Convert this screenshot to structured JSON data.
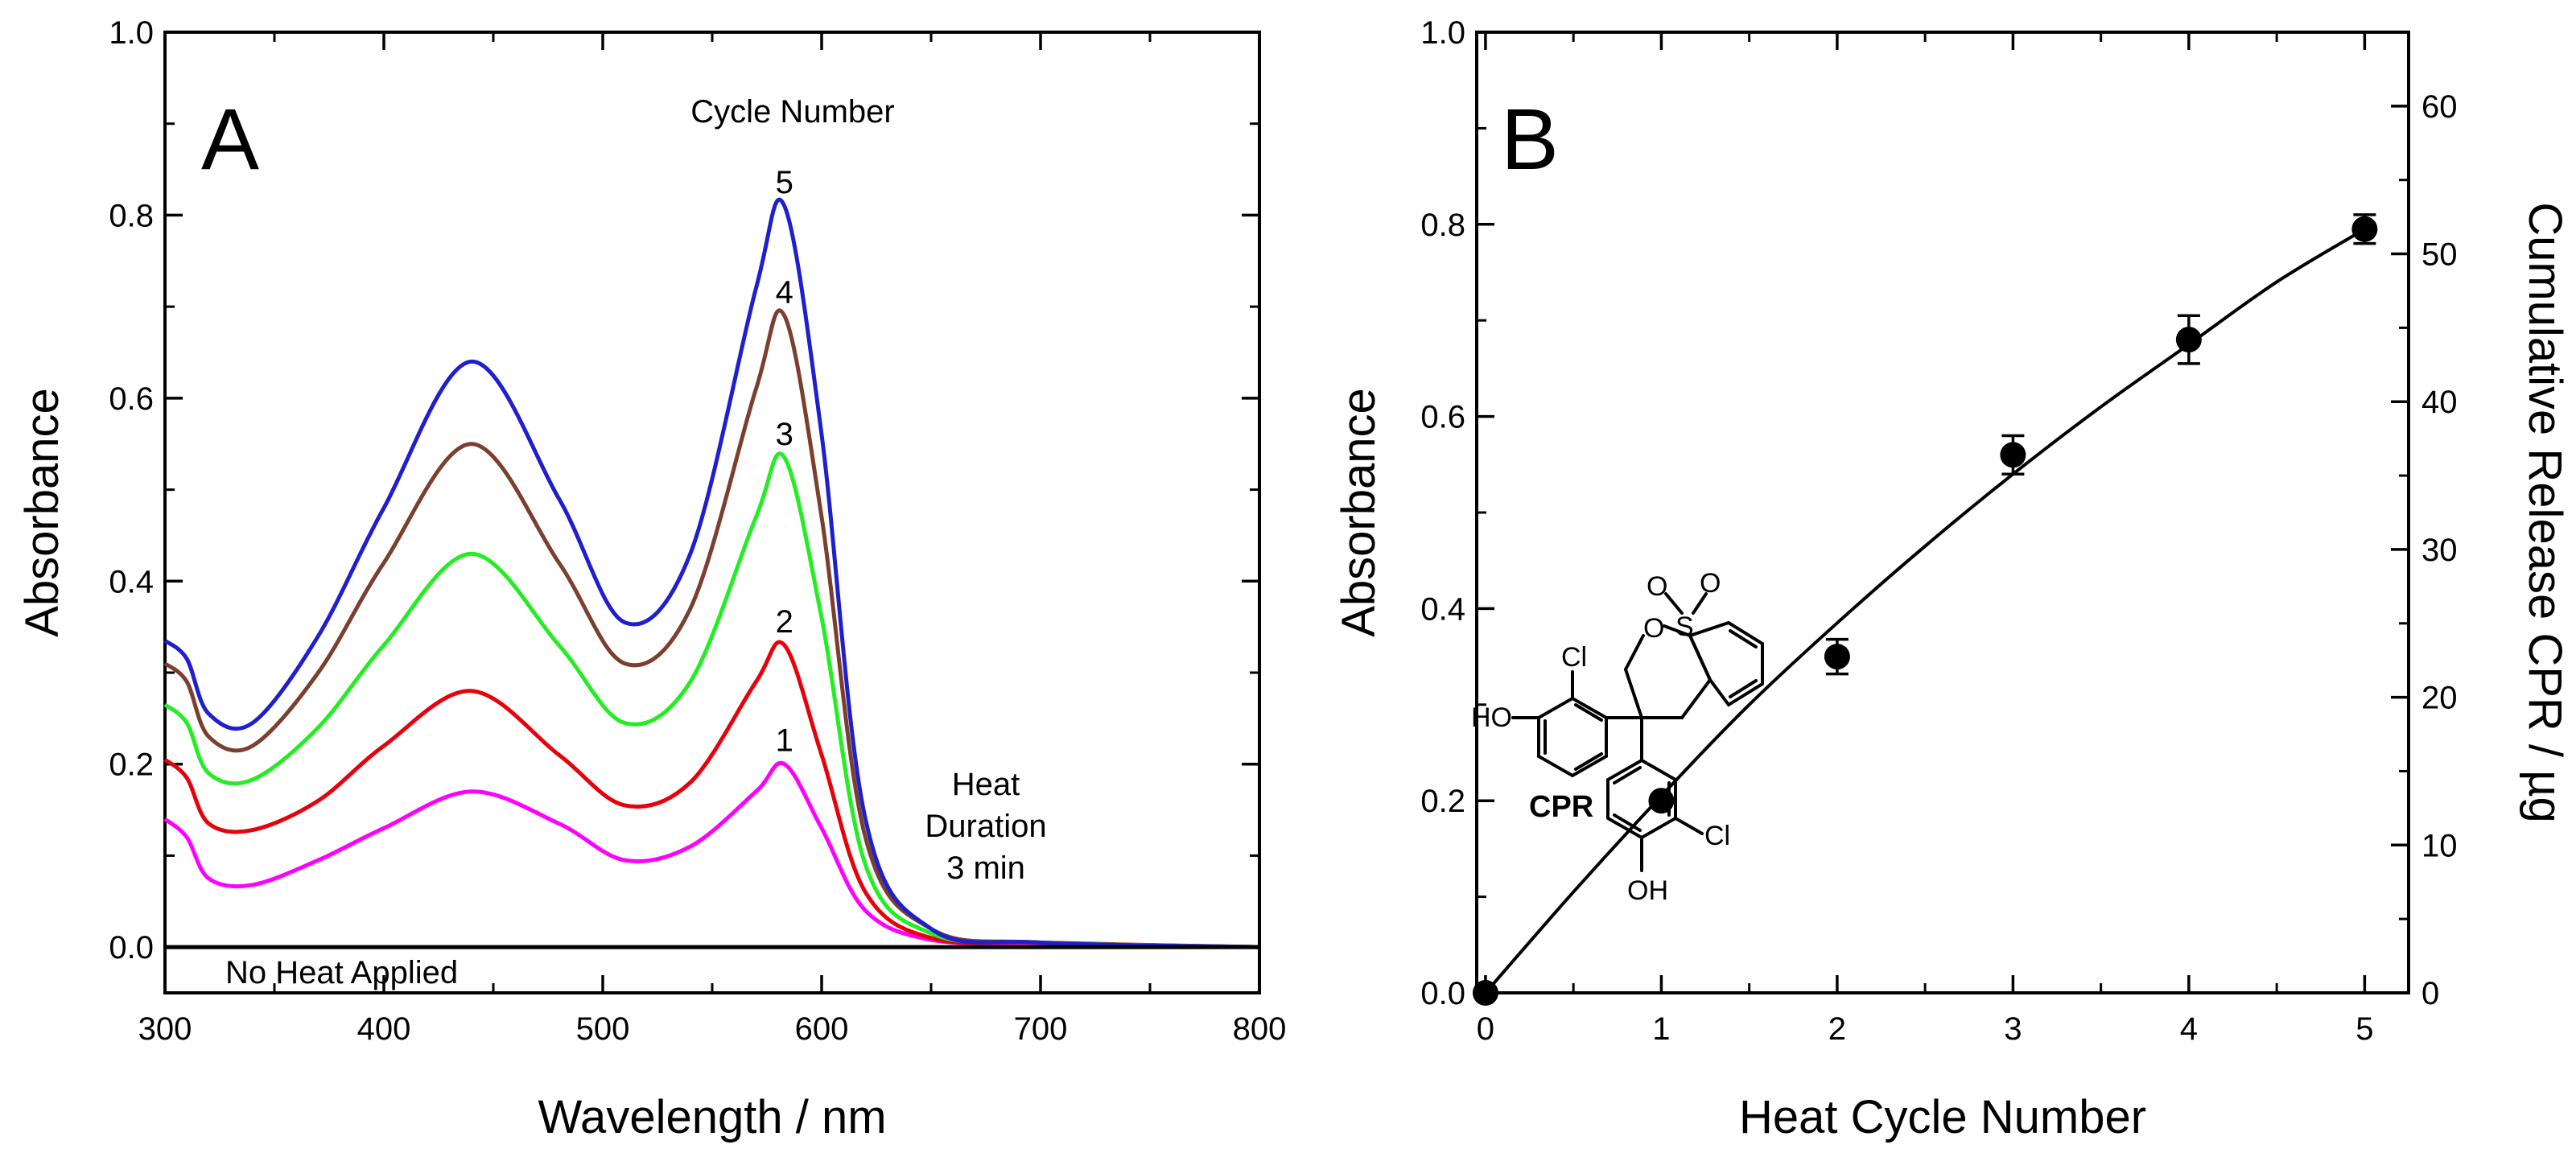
{
  "chart_data": [
    {
      "panel": "A",
      "type": "line",
      "xlabel": "Wavelength / nm",
      "ylabel": "Absorbance",
      "xlim": [
        300,
        800
      ],
      "ylim": [
        -0.05,
        1.0
      ],
      "x_ticks": [
        "300",
        "400",
        "500",
        "600",
        "700",
        "800"
      ],
      "y_ticks": [
        "0.0",
        "0.2",
        "0.4",
        "0.6",
        "0.8",
        "1.0"
      ],
      "annotations": {
        "cycle_header": "Cycle Number",
        "heat_line1": "Heat",
        "heat_line2": "Duration",
        "heat_line3": "3 min",
        "no_heat": "No Heat Applied"
      },
      "series": [
        {
          "label": "1",
          "color": "#ff00ff",
          "x": [
            300,
            310,
            320,
            340,
            370,
            400,
            440,
            480,
            510,
            540,
            570,
            583,
            600,
            620,
            650,
            700,
            800
          ],
          "y": [
            0.14,
            0.12,
            0.075,
            0.068,
            0.095,
            0.13,
            0.17,
            0.135,
            0.095,
            0.11,
            0.17,
            0.2,
            0.13,
            0.04,
            0.008,
            0.004,
            0.0
          ]
        },
        {
          "label": "2",
          "color": "#e8000b",
          "x": [
            300,
            310,
            320,
            340,
            370,
            400,
            440,
            480,
            510,
            540,
            570,
            583,
            600,
            620,
            650,
            700,
            800
          ],
          "y": [
            0.205,
            0.185,
            0.135,
            0.128,
            0.16,
            0.22,
            0.28,
            0.21,
            0.155,
            0.18,
            0.29,
            0.33,
            0.21,
            0.06,
            0.01,
            0.005,
            0.0
          ]
        },
        {
          "label": "3",
          "color": "#22ee22",
          "x": [
            300,
            310,
            320,
            340,
            370,
            400,
            440,
            480,
            510,
            540,
            570,
            583,
            600,
            620,
            650,
            700,
            800
          ],
          "y": [
            0.265,
            0.245,
            0.19,
            0.183,
            0.24,
            0.33,
            0.43,
            0.33,
            0.245,
            0.29,
            0.47,
            0.535,
            0.36,
            0.09,
            0.015,
            0.005,
            0.0
          ]
        },
        {
          "label": "4",
          "color": "#7b3f2e",
          "x": [
            300,
            310,
            320,
            340,
            370,
            400,
            440,
            480,
            510,
            540,
            570,
            583,
            600,
            620,
            650,
            700,
            800
          ],
          "y": [
            0.31,
            0.29,
            0.23,
            0.22,
            0.3,
            0.42,
            0.55,
            0.42,
            0.31,
            0.37,
            0.61,
            0.69,
            0.47,
            0.12,
            0.02,
            0.005,
            0.0
          ]
        },
        {
          "label": "5",
          "color": "#1f1fd0",
          "x": [
            300,
            310,
            320,
            340,
            370,
            400,
            440,
            480,
            510,
            540,
            570,
            583,
            600,
            620,
            650,
            700,
            800
          ],
          "y": [
            0.335,
            0.315,
            0.255,
            0.245,
            0.34,
            0.48,
            0.64,
            0.49,
            0.355,
            0.43,
            0.72,
            0.81,
            0.56,
            0.14,
            0.02,
            0.005,
            0.0
          ]
        },
        {
          "label": "No Heat Applied",
          "color": "#000000",
          "x": [
            300,
            800
          ],
          "y": [
            0.0,
            0.0
          ]
        }
      ]
    },
    {
      "panel": "B",
      "type": "scatter",
      "xlabel": "Heat Cycle Number",
      "ylabel": "Absorbance",
      "y2label": "Cumulative Release CPR / µg",
      "xlim": [
        -0.05,
        5.25
      ],
      "ylim": [
        0.0,
        1.0
      ],
      "y2lim": [
        0,
        65
      ],
      "x_ticks": [
        "0",
        "1",
        "2",
        "3",
        "4",
        "5"
      ],
      "y_ticks": [
        "0.0",
        "0.2",
        "0.4",
        "0.6",
        "0.8",
        "1.0"
      ],
      "y2_ticks": [
        "0",
        "10",
        "20",
        "30",
        "40",
        "50",
        "60"
      ],
      "points": {
        "x": [
          0,
          1,
          2,
          3,
          4,
          5
        ],
        "y": [
          0.0,
          0.2,
          0.35,
          0.56,
          0.68,
          0.795
        ],
        "err": [
          0.0,
          0.0,
          0.018,
          0.02,
          0.025,
          0.015
        ]
      },
      "fit": {
        "x": [
          0,
          0.5,
          1,
          1.5,
          2,
          2.5,
          3,
          3.5,
          4,
          4.5,
          5
        ],
        "y": [
          0.0,
          0.105,
          0.205,
          0.3,
          0.385,
          0.465,
          0.54,
          0.61,
          0.675,
          0.74,
          0.795
        ]
      },
      "structure": {
        "name": "CPR",
        "atoms": {
          "cl1": "Cl",
          "ho": "HO",
          "o_ring": "O",
          "s": "S",
          "o_top1": "O",
          "o_top2": "O",
          "cl2": "Cl",
          "oh": "OH"
        }
      }
    }
  ],
  "panel_labels": {
    "a": "A",
    "b": "B"
  }
}
